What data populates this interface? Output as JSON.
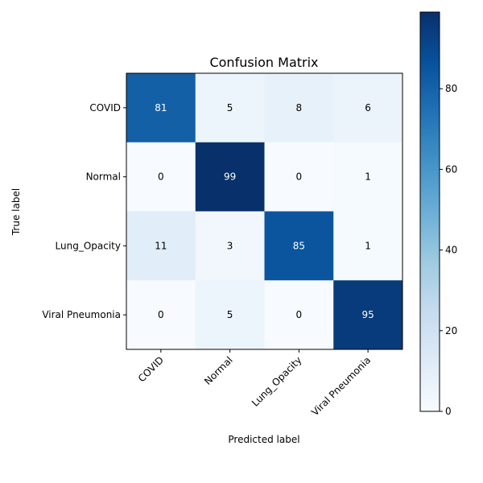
{
  "chart_data": {
    "type": "heatmap",
    "title": "Confusion Matrix",
    "xlabel": "Predicted label",
    "ylabel": "True label",
    "x_categories": [
      "COVID",
      "Normal",
      "Lung_Opacity",
      "Viral Pneumonia"
    ],
    "y_categories": [
      "COVID",
      "Normal",
      "Lung_Opacity",
      "Viral Pneumonia"
    ],
    "values": [
      [
        81,
        5,
        8,
        6
      ],
      [
        0,
        99,
        0,
        1
      ],
      [
        11,
        3,
        85,
        1
      ],
      [
        0,
        5,
        0,
        95
      ]
    ],
    "colormap": "Blues",
    "colorbar": {
      "range": [
        0,
        99
      ],
      "ticks": [
        0,
        20,
        40,
        60,
        80
      ]
    }
  }
}
